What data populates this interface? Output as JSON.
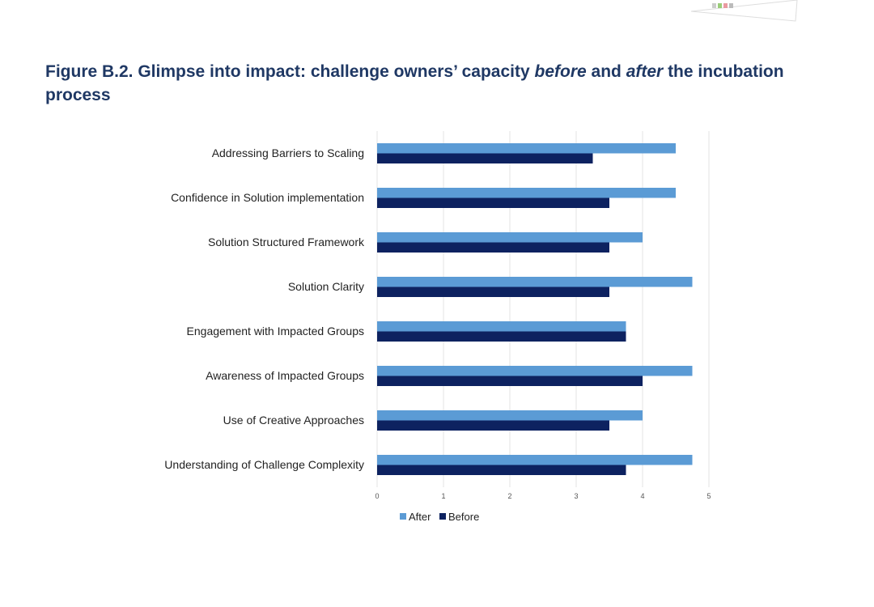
{
  "figure": {
    "title_parts": [
      {
        "text": "Figure  B.2. Glimpse into impact: challenge owners’ capacity ",
        "style": "normal"
      },
      {
        "text": "before",
        "style": "italic"
      },
      {
        "text": " and ",
        "style": "normal"
      },
      {
        "text": "after",
        "style": "italic"
      },
      {
        "text": " the incubation process",
        "style": "normal"
      }
    ]
  },
  "chart_data": {
    "type": "bar",
    "orientation": "horizontal",
    "categories": [
      "Addressing Barriers to Scaling",
      "Confidence in Solution implementation",
      "Solution Structured Framework",
      "Solution Clarity",
      "Engagement with Impacted Groups",
      "Awareness of Impacted Groups",
      "Use of Creative Approaches",
      "Understanding of Challenge Complexity"
    ],
    "series": [
      {
        "name": "After",
        "color": "#5b9bd5",
        "values": [
          4.5,
          4.5,
          4.0,
          4.75,
          3.75,
          4.75,
          4.0,
          4.75
        ]
      },
      {
        "name": "Before",
        "color": "#0d2260",
        "values": [
          3.25,
          3.5,
          3.5,
          3.5,
          3.75,
          4.0,
          3.5,
          3.75
        ]
      }
    ],
    "xlim": [
      0,
      5
    ],
    "xticks": [
      "0",
      "1",
      "2",
      "3",
      "4",
      "5"
    ],
    "grid": "vertical",
    "legend_position": "bottom"
  }
}
